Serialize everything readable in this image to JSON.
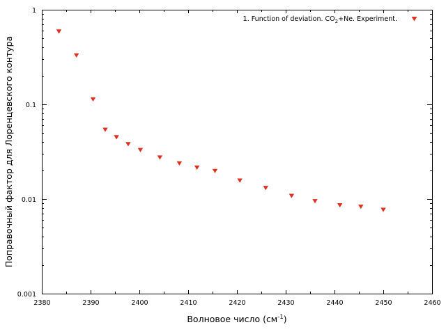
{
  "chart_data": {
    "type": "scatter",
    "xlabel": "Волновое число (см",
    "xlabel_sup": "-1",
    "xlabel_tail": ")",
    "ylabel": "Поправочный фактор для Лоренцевского контура",
    "xlim": [
      2380,
      2460
    ],
    "ylim": [
      0.001,
      1
    ],
    "yscale": "log",
    "grid": false,
    "legend_position": "top-right",
    "x_ticks": [
      "2380",
      "2390",
      "2400",
      "2410",
      "2420",
      "2430",
      "2440",
      "2450",
      "2460"
    ],
    "y_ticks": [
      "0.001",
      "0.01",
      "0.1",
      "1"
    ],
    "marker": "down-triangle",
    "series": [
      {
        "name_prefix": "1. Function of deviation. CO",
        "name_sub": "2",
        "name_suffix": "+Ne. Experiment.",
        "color": "#e0301e",
        "points": [
          {
            "x": 2383.5,
            "y": 0.59
          },
          {
            "x": 2387.1,
            "y": 0.33
          },
          {
            "x": 2390.5,
            "y": 0.113
          },
          {
            "x": 2393.0,
            "y": 0.054
          },
          {
            "x": 2395.3,
            "y": 0.045
          },
          {
            "x": 2397.7,
            "y": 0.038
          },
          {
            "x": 2400.2,
            "y": 0.033
          },
          {
            "x": 2404.2,
            "y": 0.0275
          },
          {
            "x": 2408.2,
            "y": 0.0238
          },
          {
            "x": 2411.8,
            "y": 0.0215
          },
          {
            "x": 2415.5,
            "y": 0.0198
          },
          {
            "x": 2420.6,
            "y": 0.0157
          },
          {
            "x": 2425.9,
            "y": 0.0131
          },
          {
            "x": 2431.2,
            "y": 0.0108
          },
          {
            "x": 2436.0,
            "y": 0.0095
          },
          {
            "x": 2441.1,
            "y": 0.0086
          },
          {
            "x": 2445.4,
            "y": 0.0083
          },
          {
            "x": 2450.0,
            "y": 0.0077
          }
        ]
      }
    ]
  }
}
